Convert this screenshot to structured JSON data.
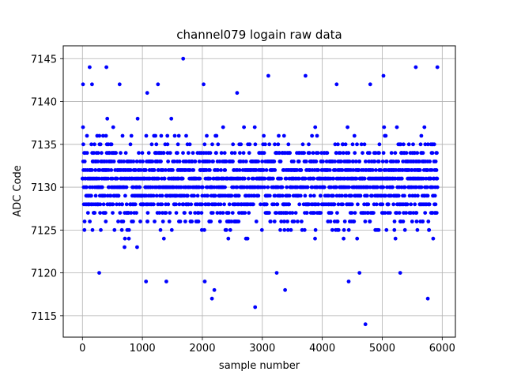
{
  "chart_data": {
    "type": "scatter",
    "title": "channel079 logain raw data",
    "xlabel": "sample number",
    "ylabel": "ADC Code",
    "xlim": [
      -320,
      6220
    ],
    "ylim": [
      7112.5,
      7146.5
    ],
    "xticks": [
      0,
      1000,
      2000,
      3000,
      4000,
      5000,
      6000
    ],
    "yticks": [
      7115,
      7120,
      7125,
      7130,
      7135,
      7140,
      7145
    ],
    "grid": true,
    "legend": "none",
    "marker_color": "#0000ff",
    "series": [
      {
        "x_range": [
          0,
          5920
        ],
        "sample_count": 5920,
        "value_range": [
          7114,
          7145
        ],
        "typical_range": [
          7123,
          7138
        ],
        "outliers": [
          {
            "x": 10,
            "y": 7142
          },
          {
            "x": 120,
            "y": 7144
          },
          {
            "x": 160,
            "y": 7142
          },
          {
            "x": 280,
            "y": 7120
          },
          {
            "x": 400,
            "y": 7144
          },
          {
            "x": 620,
            "y": 7142
          },
          {
            "x": 1060,
            "y": 7119
          },
          {
            "x": 1080,
            "y": 7141
          },
          {
            "x": 1260,
            "y": 7142
          },
          {
            "x": 1400,
            "y": 7119
          },
          {
            "x": 1680,
            "y": 7145
          },
          {
            "x": 2020,
            "y": 7142
          },
          {
            "x": 2040,
            "y": 7119
          },
          {
            "x": 2160,
            "y": 7117
          },
          {
            "x": 2200,
            "y": 7118
          },
          {
            "x": 2580,
            "y": 7141
          },
          {
            "x": 2880,
            "y": 7116
          },
          {
            "x": 3100,
            "y": 7143
          },
          {
            "x": 3240,
            "y": 7120
          },
          {
            "x": 3380,
            "y": 7118
          },
          {
            "x": 3720,
            "y": 7143
          },
          {
            "x": 4240,
            "y": 7142
          },
          {
            "x": 4440,
            "y": 7119
          },
          {
            "x": 4620,
            "y": 7120
          },
          {
            "x": 4720,
            "y": 7114
          },
          {
            "x": 4800,
            "y": 7142
          },
          {
            "x": 5020,
            "y": 7143
          },
          {
            "x": 5300,
            "y": 7120
          },
          {
            "x": 5560,
            "y": 7144
          },
          {
            "x": 5760,
            "y": 7117
          },
          {
            "x": 5920,
            "y": 7144
          }
        ]
      }
    ]
  }
}
